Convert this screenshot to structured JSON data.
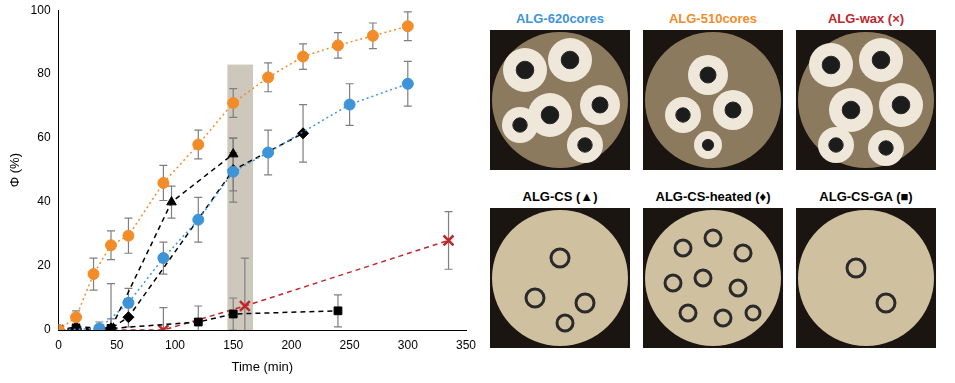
{
  "chart_data": {
    "type": "line",
    "x_label": "Time (min)",
    "y_label": "Φ (%)",
    "xlim": [
      0,
      350
    ],
    "xticks": [
      0,
      50,
      100,
      150,
      200,
      250,
      300,
      350
    ],
    "ylim": [
      0,
      100
    ],
    "yticks": [
      0,
      20,
      40,
      60,
      80,
      100
    ],
    "grid": false,
    "shaded_region": {
      "x": [
        145,
        167
      ],
      "y": [
        0,
        83
      ]
    },
    "series": [
      {
        "color": "#f28c28",
        "marker": "circle",
        "line_style": "dotted",
        "x": [
          0,
          15,
          30,
          45,
          60,
          90,
          120,
          150,
          180,
          210,
          240,
          270,
          300
        ],
        "values": [
          0,
          4,
          17.5,
          26.5,
          29.5,
          46,
          58,
          71,
          79,
          85.5,
          89,
          92,
          95
        ],
        "errors": [
          0,
          2,
          5,
          4.5,
          5.5,
          5.5,
          4.5,
          4.5,
          4.5,
          4,
          4,
          4,
          4.5
        ]
      },
      {
        "color": "#3d94d8",
        "marker": "circle",
        "line_style": "dotted",
        "x": [
          0,
          35,
          60,
          90,
          120,
          150,
          180,
          250,
          300
        ],
        "values": [
          0,
          0.5,
          8.5,
          22.5,
          34.5,
          49.5,
          55.5,
          70.5,
          77
        ],
        "errors": [
          0,
          2,
          4.5,
          5,
          7,
          6,
          7,
          6.5,
          7
        ]
      },
      {
        "color": "#000000",
        "marker": "triangle",
        "line_style": "dashed",
        "x": [
          0,
          15,
          45,
          97,
          150
        ],
        "values": [
          0,
          1,
          0.5,
          40,
          55
        ],
        "errors": [
          0,
          1,
          1,
          5,
          5
        ]
      },
      {
        "color": "#000000",
        "marker": "diamond",
        "line_style": "dashed",
        "x": [
          0,
          45,
          60,
          150,
          210
        ],
        "values": [
          0,
          0.5,
          4,
          50,
          61.5
        ],
        "errors": [
          0,
          14,
          3,
          10,
          9
        ]
      },
      {
        "color": "#000000",
        "marker": "square",
        "line_style": "dashed",
        "x": [
          0,
          15,
          45,
          120,
          150,
          240
        ],
        "values": [
          0,
          0.5,
          0.5,
          2.5,
          5,
          6
        ],
        "errors": [
          0,
          1,
          3,
          5,
          5,
          5
        ]
      },
      {
        "color": "#c0272d",
        "marker": "x",
        "line_style": "dashed",
        "x": [
          0,
          90,
          160,
          335
        ],
        "values": [
          0,
          0,
          7.5,
          28
        ],
        "errors": [
          0,
          7,
          15,
          9
        ]
      }
    ]
  },
  "panels": [
    {
      "label": "ALG-620cores",
      "color": "#3d94d8"
    },
    {
      "label": "ALG-510cores",
      "color": "#f28c28"
    },
    {
      "label": "ALG-wax (×)",
      "color": "#c0272d"
    },
    {
      "label": "ALG-CS (▲)",
      "color": "#000000"
    },
    {
      "label": "ALG-CS-heated (♦)",
      "color": "#000000"
    },
    {
      "label": "ALG-CS-GA (■)",
      "color": "#000000"
    }
  ]
}
